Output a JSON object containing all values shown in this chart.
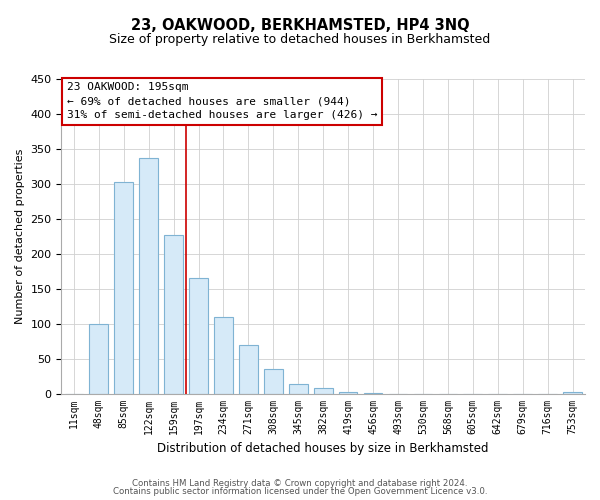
{
  "title": "23, OAKWOOD, BERKHAMSTED, HP4 3NQ",
  "subtitle": "Size of property relative to detached houses in Berkhamsted",
  "xlabel": "Distribution of detached houses by size in Berkhamsted",
  "ylabel": "Number of detached properties",
  "bar_labels": [
    "11sqm",
    "48sqm",
    "85sqm",
    "122sqm",
    "159sqm",
    "197sqm",
    "234sqm",
    "271sqm",
    "308sqm",
    "345sqm",
    "382sqm",
    "419sqm",
    "456sqm",
    "493sqm",
    "530sqm",
    "568sqm",
    "605sqm",
    "642sqm",
    "679sqm",
    "716sqm",
    "753sqm"
  ],
  "bar_values": [
    0,
    99,
    303,
    337,
    227,
    165,
    109,
    69,
    35,
    13,
    8,
    2,
    1,
    0,
    0,
    0,
    0,
    0,
    0,
    0,
    2
  ],
  "bar_fill_color": "#d6eaf8",
  "bar_edge_color": "#7fb3d3",
  "property_line_index": 4.5,
  "annotation_title": "23 OAKWOOD: 195sqm",
  "annotation_line1": "← 69% of detached houses are smaller (944)",
  "annotation_line2": "31% of semi-detached houses are larger (426) →",
  "ylim": [
    0,
    450
  ],
  "yticks": [
    0,
    50,
    100,
    150,
    200,
    250,
    300,
    350,
    400,
    450
  ],
  "footer_line1": "Contains HM Land Registry data © Crown copyright and database right 2024.",
  "footer_line2": "Contains public sector information licensed under the Open Government Licence v3.0.",
  "background_color": "#ffffff",
  "grid_color": "#d0d0d0",
  "marker_line_color": "#cc0000",
  "annotation_box_edge": "#cc0000",
  "title_fontsize": 10.5,
  "subtitle_fontsize": 9,
  "bar_width": 0.75
}
